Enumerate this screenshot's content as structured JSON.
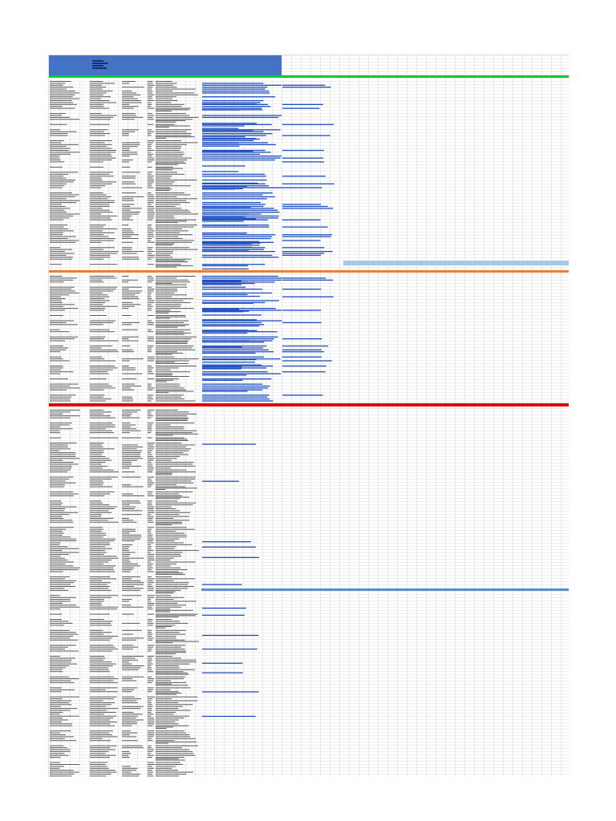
{
  "sheet": {
    "header": {
      "title": "",
      "subtitle": "",
      "notes": [
        "",
        ""
      ]
    },
    "section_a": {
      "columns": [
        "",
        "",
        "",
        "",
        "",
        "",
        ""
      ]
    },
    "section_b": {
      "columns": [
        "",
        "",
        "",
        "",
        "",
        ""
      ]
    },
    "section_c": {
      "columns": [
        "",
        "",
        "",
        "",
        "",
        ""
      ]
    }
  },
  "colors": {
    "header_blue": "#4472c4",
    "section_a_bar": "#00cc33",
    "section_b_bar": "#ed7d31",
    "section_c_bar": "#e00000",
    "link_blue": "#1f4fbf",
    "highlight_blue": "#a9c7ea"
  }
}
